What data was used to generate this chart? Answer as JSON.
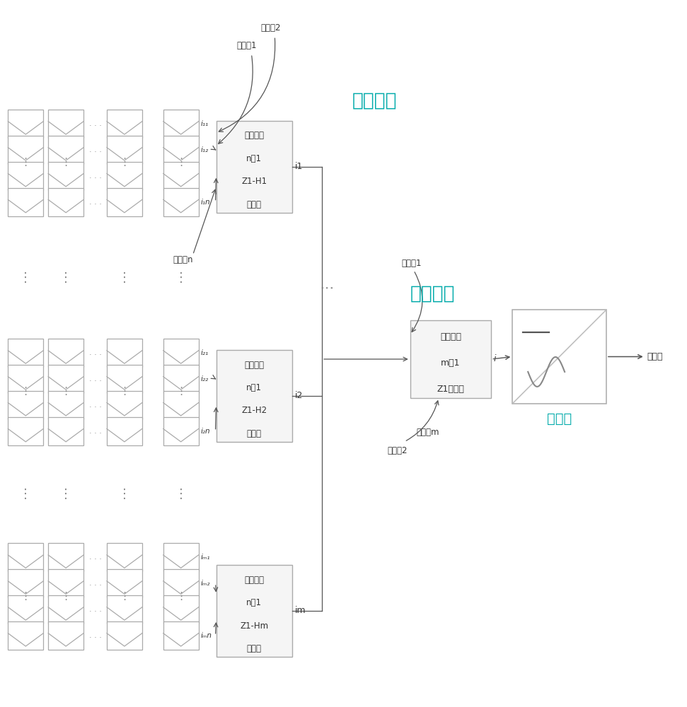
{
  "bg_color": "#ffffff",
  "gray_color": "#999999",
  "dark_color": "#333333",
  "arrow_color": "#555555",
  "cyan_color": "#00aaaa",
  "box_face": "#f5f5f5",
  "label_1ji": "一级汇流",
  "label_2ji": "二级汇流",
  "label_inverter": "逆变器",
  "label_grid": "并网点",
  "box1_lines": [
    "一级汇流",
    "n进1",
    "Z1-H1",
    "汇流筱"
  ],
  "box2_lines": [
    "一级汇流",
    "n进1",
    "Z1-H2",
    "汇流筱"
  ],
  "boxm_lines": [
    "一级汇流",
    "n进1",
    "Z1-Hm",
    "汇流筱"
  ],
  "box2nd_lines": [
    "二级汇流",
    "m进1",
    "Z1汇流筱"
  ],
  "in1": "输入端1",
  "in2": "输入端2",
  "inn": "输入端n",
  "in1_2nd": "输入端1",
  "in2_2nd": "输入端2",
  "inm_2nd": "输入端m"
}
